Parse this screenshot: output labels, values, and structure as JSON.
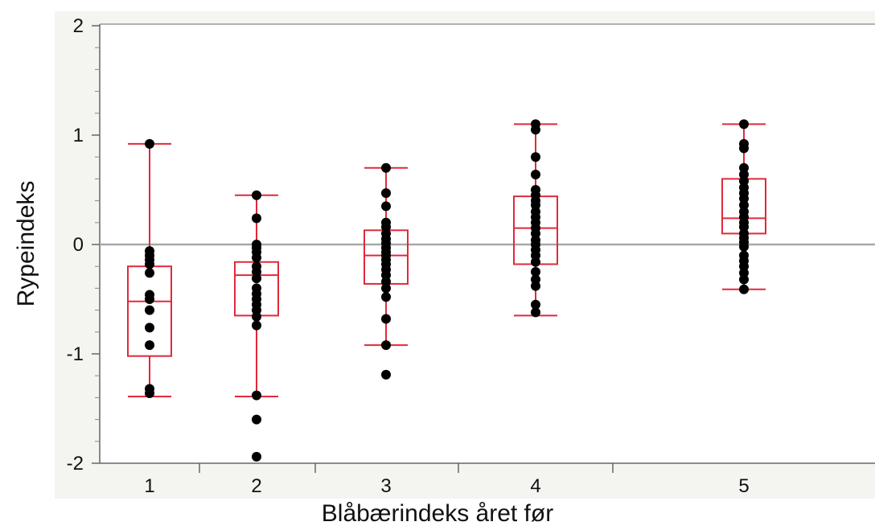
{
  "chart_data": {
    "type": "box",
    "title": "",
    "xlabel": "Blåbærindeks året før",
    "ylabel": "Rypeindeks",
    "ylim": [
      -2,
      2
    ],
    "yticks": [
      "2",
      "1",
      "0",
      "-1",
      "-2"
    ],
    "categories": [
      "1",
      "2",
      "3",
      "4",
      "5"
    ],
    "reference_line_y": 0,
    "box_color": "#e0293c",
    "point_color": "#000000",
    "grid": false,
    "boxes": [
      {
        "category": "1",
        "whisker_low": -1.39,
        "q1": -1.02,
        "median": -0.52,
        "q3": -0.2,
        "whisker_high": 0.92
      },
      {
        "category": "2",
        "whisker_low": -1.39,
        "q1": -0.65,
        "median": -0.28,
        "q3": -0.16,
        "whisker_high": 0.45
      },
      {
        "category": "3",
        "whisker_low": -0.92,
        "q1": -0.36,
        "median": -0.1,
        "q3": 0.13,
        "whisker_high": 0.7
      },
      {
        "category": "4",
        "whisker_low": -0.65,
        "q1": -0.18,
        "median": 0.15,
        "q3": 0.44,
        "whisker_high": 1.1
      },
      {
        "category": "5",
        "whisker_low": -0.41,
        "q1": 0.1,
        "median": 0.24,
        "q3": 0.6,
        "whisker_high": 1.1
      }
    ],
    "points": [
      {
        "category": "1",
        "values": [
          0.92,
          -0.06,
          -0.1,
          -0.14,
          -0.18,
          -0.26,
          -0.46,
          -0.5,
          -0.6,
          -0.76,
          -0.92,
          -1.32,
          -1.36
        ]
      },
      {
        "category": "2",
        "values": [
          0.45,
          0.24,
          0.0,
          -0.03,
          -0.07,
          -0.12,
          -0.2,
          -0.25,
          -0.31,
          -0.4,
          -0.45,
          -0.5,
          -0.55,
          -0.6,
          -0.66,
          -0.74,
          -1.38,
          -1.6,
          -1.94
        ]
      },
      {
        "category": "3",
        "values": [
          0.7,
          0.47,
          0.35,
          0.2,
          0.16,
          0.1,
          0.05,
          0.01,
          -0.03,
          -0.07,
          -0.1,
          -0.14,
          -0.18,
          -0.23,
          -0.28,
          -0.34,
          -0.4,
          -0.48,
          -0.68,
          -0.92,
          -1.19
        ]
      },
      {
        "category": "4",
        "values": [
          1.1,
          1.05,
          0.8,
          0.64,
          0.5,
          0.45,
          0.4,
          0.36,
          0.3,
          0.25,
          0.2,
          0.15,
          0.1,
          0.04,
          0.0,
          -0.05,
          -0.1,
          -0.16,
          -0.25,
          -0.32,
          -0.38,
          -0.55,
          -0.62
        ]
      },
      {
        "category": "5",
        "values": [
          1.1,
          0.92,
          0.88,
          0.7,
          0.64,
          0.58,
          0.52,
          0.47,
          0.42,
          0.36,
          0.3,
          0.25,
          0.2,
          0.16,
          0.1,
          0.06,
          0.02,
          -0.02,
          -0.1,
          -0.15,
          -0.2,
          -0.26,
          -0.32,
          -0.41
        ]
      }
    ]
  }
}
